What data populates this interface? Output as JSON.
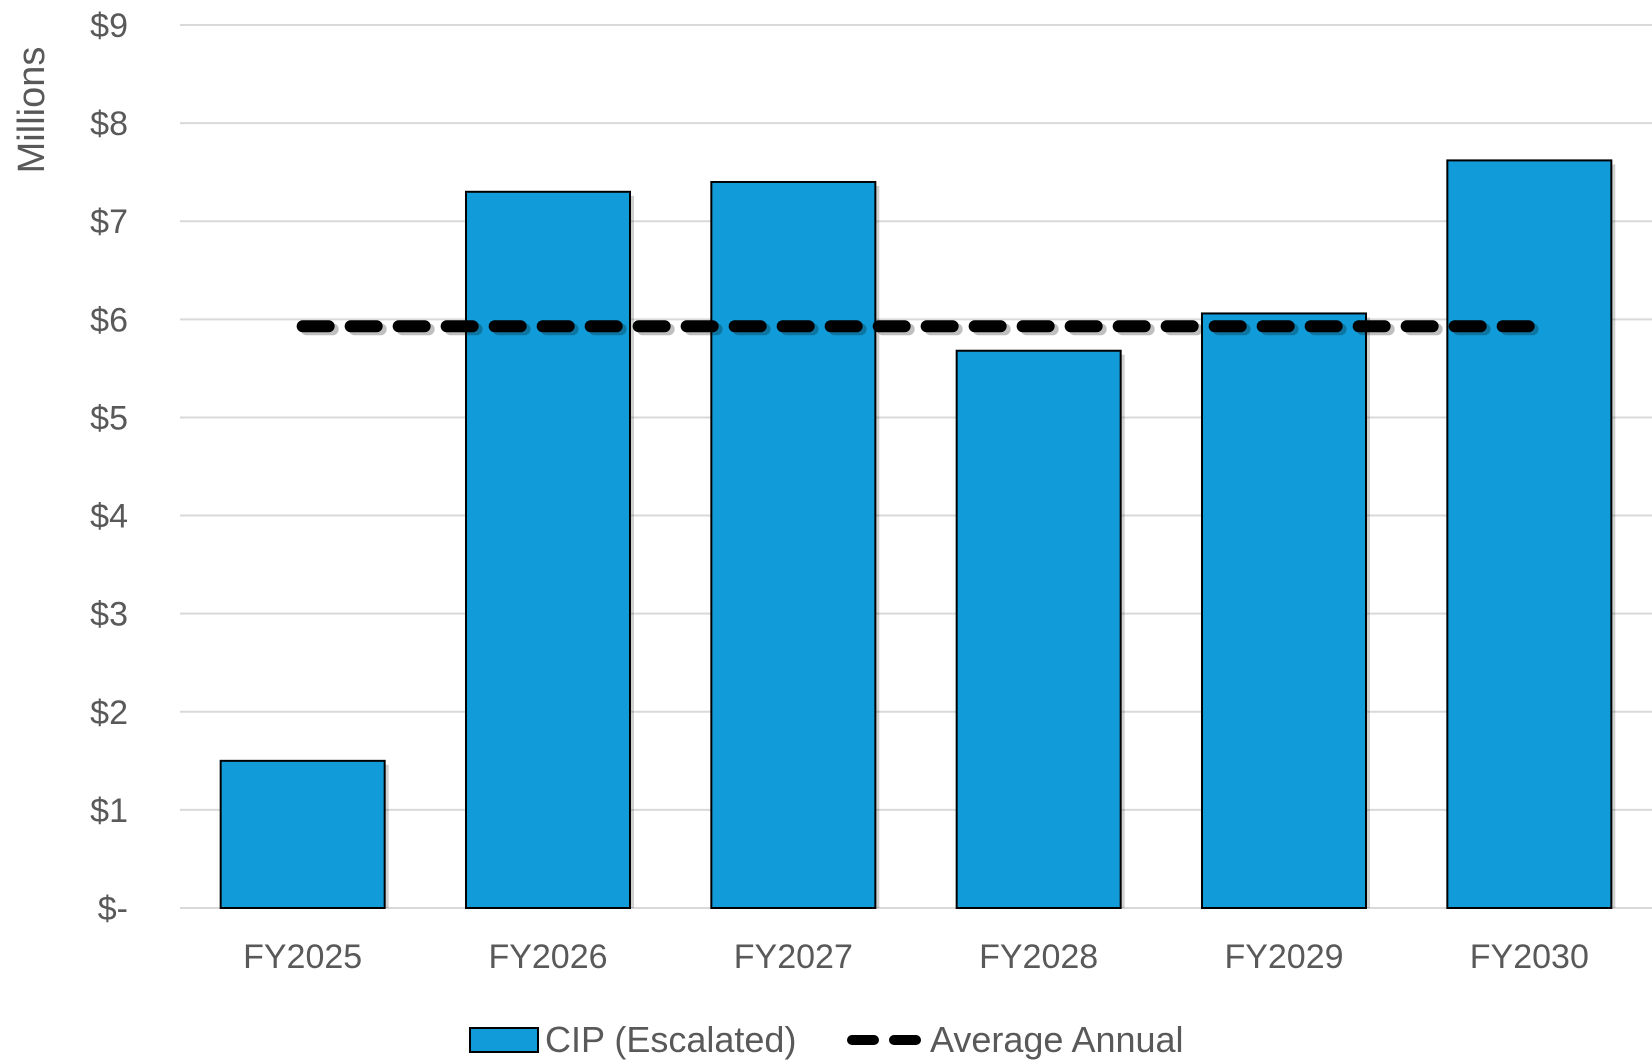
{
  "chart_data": {
    "type": "bar",
    "ylabel": "Millions",
    "categories": [
      "FY2025",
      "FY2026",
      "FY2027",
      "FY2028",
      "FY2029",
      "FY2030"
    ],
    "series": [
      {
        "name": "CIP (Escalated)",
        "type": "bar",
        "color": "#119cd9",
        "values": [
          1.5,
          7.3,
          7.4,
          5.68,
          6.06,
          7.62
        ]
      }
    ],
    "reference_lines": [
      {
        "name": "Average Annual",
        "type": "dashed-line",
        "color": "#000000",
        "value": 5.93
      }
    ],
    "ylim": [
      0,
      9
    ],
    "y_ticks": [
      0,
      1,
      2,
      3,
      4,
      5,
      6,
      7,
      8,
      9
    ],
    "y_tick_labels": [
      "$-",
      "$1",
      "$2",
      "$3",
      "$4",
      "$5",
      "$6",
      "$7",
      "$8",
      "$9"
    ],
    "grid": true,
    "legend": "bottom"
  }
}
